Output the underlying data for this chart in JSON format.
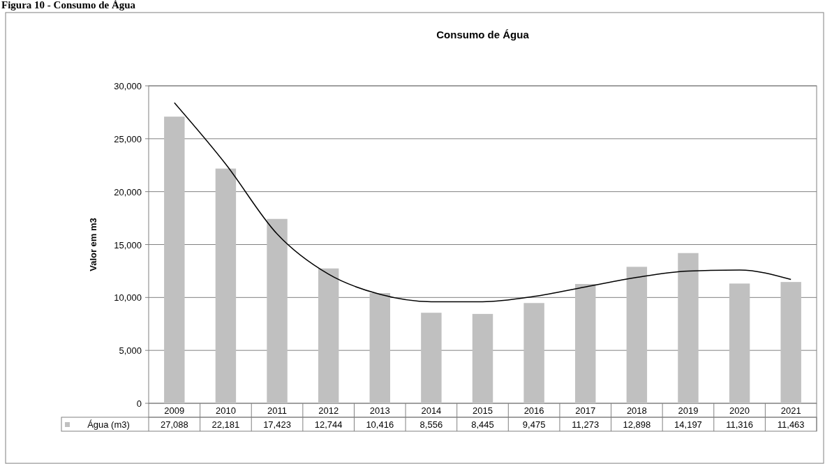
{
  "chart_data": {
    "type": "bar",
    "title": "Consumo de Água",
    "ylabel": "Valor em m3",
    "annotations": [
      "Figura 10 - Consumo de Água"
    ],
    "categories": [
      "2009",
      "2010",
      "2011",
      "2012",
      "2013",
      "2014",
      "2015",
      "2016",
      "2017",
      "2018",
      "2019",
      "2020",
      "2021"
    ],
    "series": [
      {
        "name": "Água (m3)",
        "color": "#c0c0c0",
        "values": [
          27088,
          22181,
          17423,
          12744,
          10416,
          8556,
          8445,
          9475,
          11273,
          12898,
          14197,
          11316,
          11463
        ],
        "value_labels": [
          "27,088",
          "22,181",
          "17,423",
          "12,744",
          "10,416",
          "8,556",
          "8,445",
          "9,475",
          "11,273",
          "12,898",
          "14,197",
          "11,316",
          "11,463"
        ]
      },
      {
        "type": "line",
        "color": "#000000",
        "values": [
          28400,
          22600,
          16000,
          12200,
          10300,
          9600,
          9600,
          10100,
          11000,
          11900,
          12500,
          12600,
          11700
        ]
      }
    ],
    "ylim": [
      0,
      30000
    ],
    "yticks": [
      {
        "value": 0,
        "label": "0"
      },
      {
        "value": 5000,
        "label": "5,000"
      },
      {
        "value": 10000,
        "label": "10,000"
      },
      {
        "value": 15000,
        "label": "15,000"
      },
      {
        "value": 20000,
        "label": "20,000"
      },
      {
        "value": 25000,
        "label": "25,000"
      },
      {
        "value": 30000,
        "label": "30,000"
      }
    ],
    "grid": "y",
    "marker": "none",
    "line_style": "solid"
  }
}
